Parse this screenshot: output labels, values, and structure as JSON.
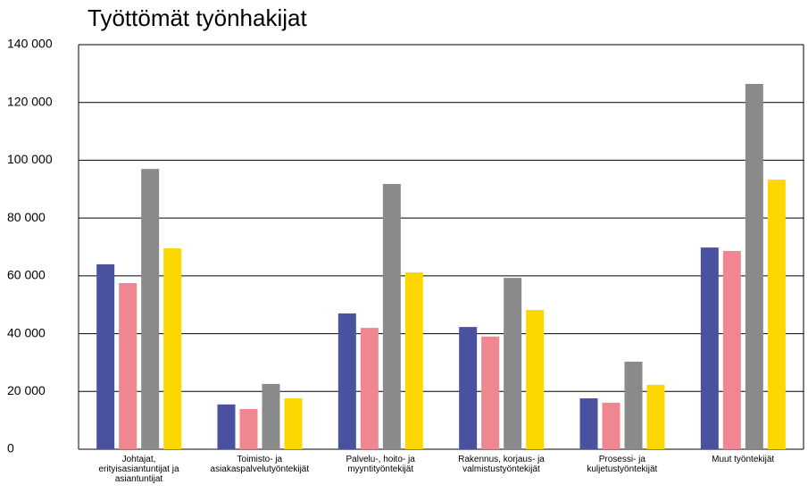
{
  "chart_data": {
    "type": "bar",
    "title": "Työttömät työnhakijat",
    "categories": [
      "Johtajat,\nerityisasiantuntijat ja\nasiantuntijat",
      "Toimisto- ja\nasiakaspalvelutyöntekijät",
      "Palvelu-, hoito- ja\nmyyntityöntekijät",
      "Rakennus, korjaus- ja\nvalmistustyöntekijät",
      "Prosessi- ja\nkuljetustyöntekijät",
      "Muut työntekijät"
    ],
    "series": [
      {
        "color": "#4a52a0",
        "values": [
          64000,
          15500,
          47000,
          42300,
          17600,
          69800
        ]
      },
      {
        "color": "#f0868f",
        "values": [
          57500,
          13900,
          42000,
          39000,
          16100,
          68600
        ]
      },
      {
        "color": "#8a8a8a",
        "values": [
          97000,
          22600,
          91800,
          59300,
          30300,
          126400
        ]
      },
      {
        "color": "#ffd700",
        "values": [
          69500,
          17600,
          61200,
          48200,
          22300,
          93300
        ]
      }
    ],
    "ylim": [
      0,
      140000
    ],
    "yticks": [
      0,
      {
        "value": 20000,
        "label": "20 000"
      },
      {
        "value": 40000,
        "label": "40 000"
      },
      {
        "value": 60000,
        "label": "60 000"
      },
      {
        "value": 80000,
        "label": "80 000"
      },
      {
        "value": 100000,
        "label": "100 000"
      },
      {
        "value": 120000,
        "label": "120 000"
      },
      {
        "value": 140000,
        "label": "140 000"
      }
    ],
    "grid": true
  }
}
